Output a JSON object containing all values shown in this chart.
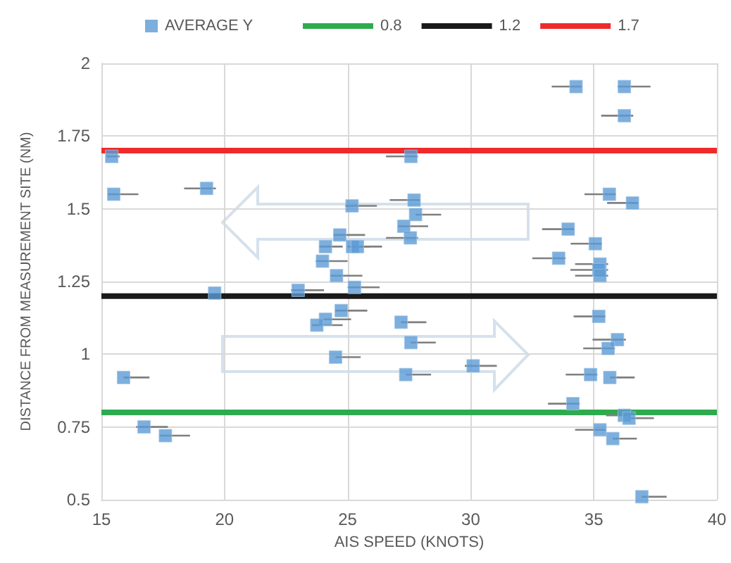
{
  "chart_data": {
    "type": "scatter",
    "xlabel": "AIS SPEED (KNOTS)",
    "ylabel": "DISTANCE FROM MEASUREMENT SITE (NM)",
    "xlim": [
      15,
      40
    ],
    "xticks": [
      15,
      20,
      25,
      30,
      35,
      40
    ],
    "ylim": [
      0.5,
      2
    ],
    "yticks": [
      0.5,
      0.75,
      1,
      1.25,
      1.5,
      1.75,
      2
    ],
    "grid": true,
    "legend": "top",
    "series": [
      {
        "name": "AVERAGE Y",
        "marker": "square",
        "color": "#5b9bd5",
        "x": [
          15.42,
          15.5,
          19.27,
          19.6,
          15.9,
          16.73,
          17.6,
          27.57,
          27.7,
          25.18,
          27.76,
          27.28,
          27.55,
          24.68,
          24.1,
          25.2,
          25.4,
          23.98,
          24.55,
          25.28,
          22.99,
          24.74,
          24.1,
          23.75,
          27.17,
          27.57,
          24.51,
          27.36,
          30.1,
          34.28,
          36.24,
          36.24,
          35.63,
          36.57,
          33.96,
          35.06,
          33.57,
          35.25,
          35.2,
          35.25,
          35.2,
          35.96,
          35.58,
          34.87,
          35.65,
          34.15,
          36.24,
          36.43,
          35.25,
          35.77,
          36.95
        ],
        "values": [
          1.68,
          1.55,
          1.57,
          1.21,
          0.92,
          0.75,
          0.72,
          1.68,
          1.53,
          1.51,
          1.48,
          1.44,
          1.4,
          1.41,
          1.37,
          1.37,
          1.37,
          1.32,
          1.27,
          1.23,
          1.22,
          1.15,
          1.12,
          1.1,
          1.11,
          1.04,
          0.99,
          0.93,
          0.96,
          1.92,
          1.92,
          1.82,
          1.55,
          1.52,
          1.43,
          1.38,
          1.33,
          1.31,
          1.29,
          1.27,
          1.13,
          1.05,
          1.02,
          0.93,
          0.92,
          0.83,
          0.79,
          0.78,
          0.74,
          0.71,
          0.51
        ],
        "xerrors": [
          [
            15.2,
            15.74
          ],
          [
            15.27,
            16.5
          ],
          [
            18.36,
            19.65
          ],
          null,
          [
            15.9,
            16.95
          ],
          [
            16.41,
            17.7
          ],
          [
            17.36,
            18.6
          ],
          [
            26.56,
            27.86
          ],
          [
            26.71,
            27.95
          ],
          [
            24.9,
            26.19
          ],
          [
            27.76,
            28.8
          ],
          [
            27.05,
            28.27
          ],
          [
            26.56,
            27.86
          ],
          [
            24.42,
            25.71
          ],
          [
            23.85,
            24.8
          ],
          [
            25.0,
            25.9
          ],
          [
            25.2,
            26.4
          ],
          [
            23.7,
            25.0
          ],
          [
            24.3,
            25.6
          ],
          [
            25.0,
            26.3
          ],
          [
            22.7,
            24.04
          ],
          [
            24.5,
            25.8
          ],
          [
            23.85,
            25.14
          ],
          [
            23.55,
            24.8
          ],
          [
            27.17,
            28.2
          ],
          [
            27.57,
            28.58
          ],
          [
            24.51,
            25.53
          ],
          [
            27.36,
            28.39
          ],
          [
            29.76,
            31.06
          ],
          [
            33.29,
            34.5
          ],
          [
            35.96,
            37.3
          ],
          [
            35.3,
            36.6
          ],
          [
            34.62,
            35.9
          ],
          [
            35.54,
            36.8
          ],
          [
            32.9,
            34.2
          ],
          [
            34.06,
            35.33
          ],
          [
            32.5,
            33.86
          ],
          [
            34.24,
            35.58
          ],
          [
            34.05,
            35.58
          ],
          [
            34.24,
            35.58
          ],
          [
            34.18,
            35.48
          ],
          [
            34.95,
            36.3
          ],
          [
            34.57,
            35.86
          ],
          [
            33.86,
            35.15
          ],
          [
            35.65,
            36.66
          ],
          [
            33.14,
            34.43
          ],
          [
            35.5,
            36.5
          ],
          [
            36.43,
            37.44
          ],
          [
            34.24,
            35.48
          ],
          [
            35.77,
            36.75
          ],
          [
            36.95,
            37.96
          ]
        ]
      },
      {
        "name": "0.8",
        "type": "line",
        "marker": "none",
        "color": "#2eab4f",
        "x": [
          15,
          40
        ],
        "values": [
          0.8,
          0.8
        ]
      },
      {
        "name": "1.2",
        "type": "line",
        "marker": "none",
        "color": "#1a1a1a",
        "x": [
          15,
          40
        ],
        "values": [
          1.2,
          1.2
        ]
      },
      {
        "name": "1.7",
        "type": "line",
        "marker": "none",
        "color": "#ee2b2b",
        "x": [
          15,
          40
        ],
        "values": [
          1.7,
          1.7
        ]
      }
    ]
  }
}
